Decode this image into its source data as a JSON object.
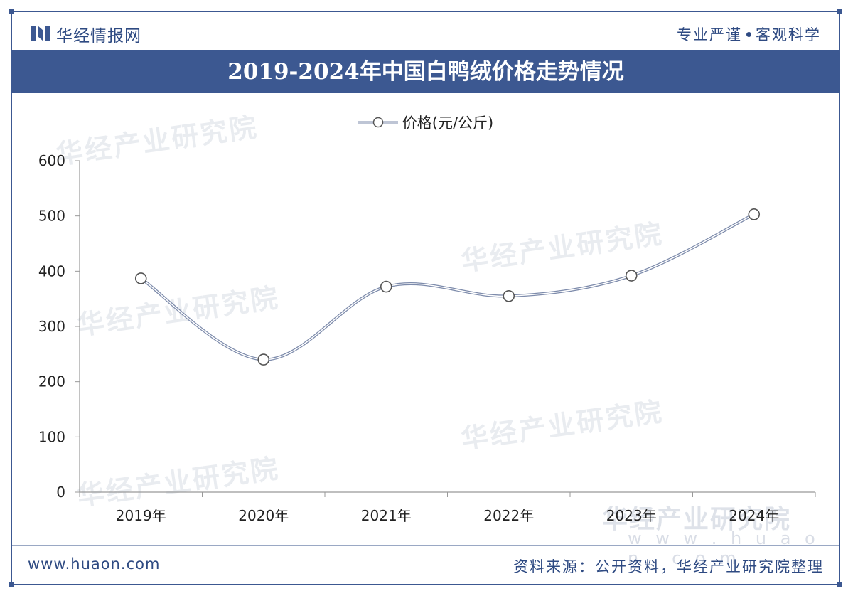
{
  "header": {
    "brand": "华经情报网",
    "slogan_left": "专业严谨",
    "slogan_right": "客观科学"
  },
  "title": "2019-2024年中国白鸭绒价格走势情况",
  "watermark": {
    "text": "华经产业研究院",
    "url": "w w w . h u a o n . c o m"
  },
  "footer": {
    "website": "www.huaon.com",
    "source": "资料来源：公开资料，华经产业研究院整理"
  },
  "colors": {
    "brand": "#3c5891",
    "line": "#7d8bab",
    "axis": "#999999"
  },
  "chart_data": {
    "type": "line",
    "title": "2019-2024年中国白鸭绒价格走势情况",
    "categories": [
      "2019年",
      "2020年",
      "2021年",
      "2022年",
      "2023年",
      "2024年"
    ],
    "series": [
      {
        "name": "价格(元/公斤)",
        "values": [
          387,
          240,
          372,
          355,
          392,
          503
        ]
      }
    ],
    "ylim": [
      0,
      600
    ],
    "yticks": [
      0,
      100,
      200,
      300,
      400,
      500,
      600
    ],
    "grid": false,
    "legend": "top",
    "smooth": true
  }
}
